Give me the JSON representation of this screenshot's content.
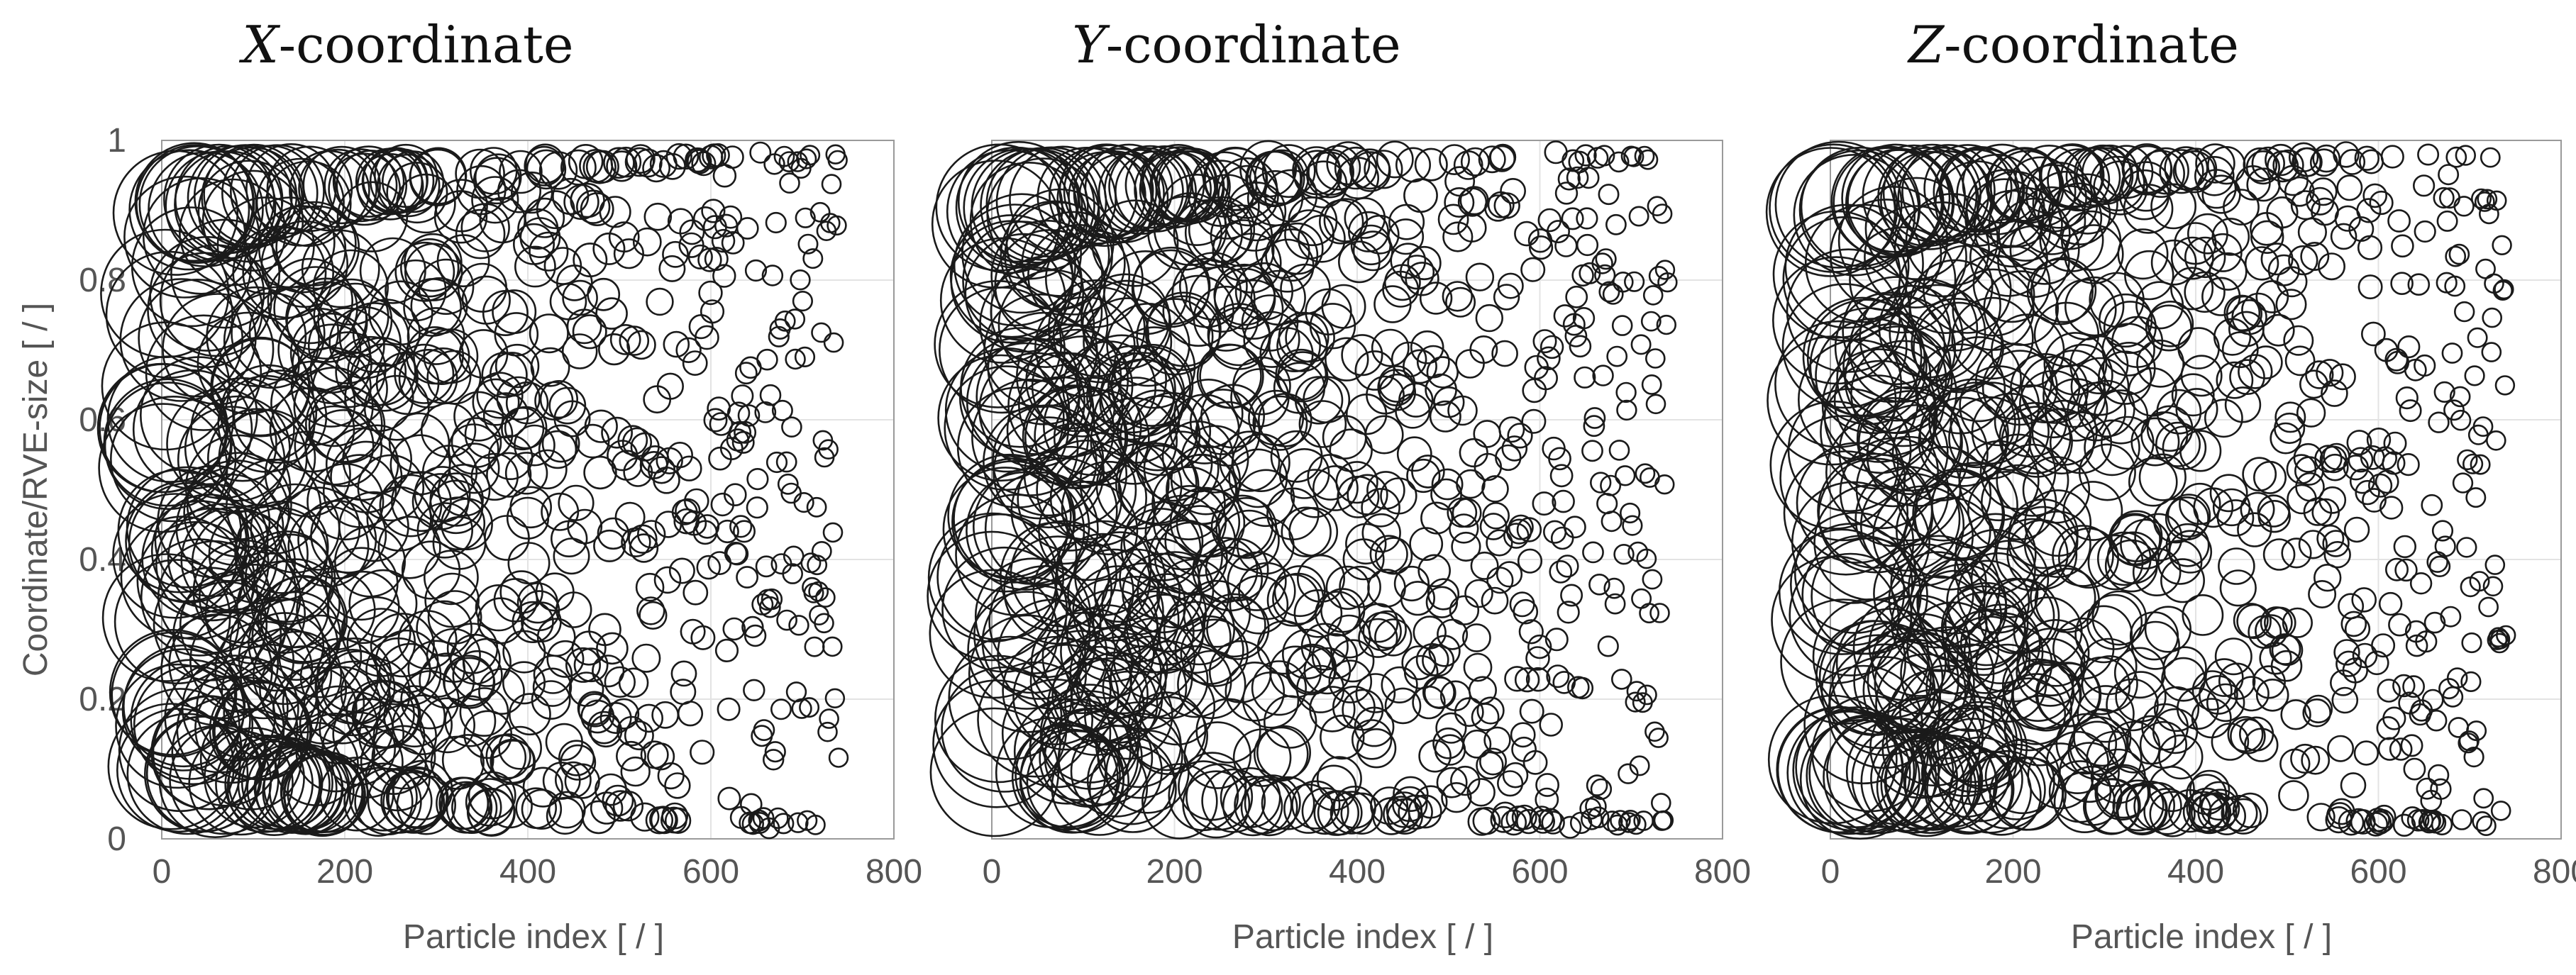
{
  "chart_data": [
    {
      "type": "scatter",
      "title_italic": "X",
      "title_rest": "-coordinate",
      "xlabel": "Particle index [ / ]",
      "ylabel": "Coordinate/RVE-size [ / ]",
      "xlim": [
        0,
        800
      ],
      "ylim": [
        0,
        1
      ],
      "xticks": [
        "0",
        "200",
        "400",
        "600",
        "800"
      ],
      "yticks": [
        "0",
        "0.2",
        "0.4",
        "0.6",
        "0.8",
        "1"
      ],
      "grid": true,
      "marker": "open-circle",
      "marker_size_note": "circle size decreases with particle index",
      "seed": 11
    },
    {
      "type": "scatter",
      "title_italic": "Y",
      "title_rest": "-coordinate",
      "xlabel": "Particle index [ / ]",
      "ylabel": "",
      "xlim": [
        0,
        800
      ],
      "ylim": [
        0,
        1
      ],
      "xticks": [
        "0",
        "200",
        "400",
        "600",
        "800"
      ],
      "yticks": [],
      "grid": true,
      "marker": "open-circle",
      "marker_size_note": "circle size decreases with particle index",
      "seed": 29
    },
    {
      "type": "scatter",
      "title_italic": "Z",
      "title_rest": "-coordinate",
      "xlabel": "Particle index [ / ]",
      "ylabel": "",
      "xlim": [
        0,
        800
      ],
      "ylim": [
        0,
        1
      ],
      "xticks": [
        "0",
        "200",
        "400",
        "600",
        "800"
      ],
      "yticks": [],
      "grid": true,
      "marker": "open-circle",
      "marker_size_note": "circle size decreases with particle index",
      "seed": 47
    }
  ],
  "points_per_panel": 740
}
